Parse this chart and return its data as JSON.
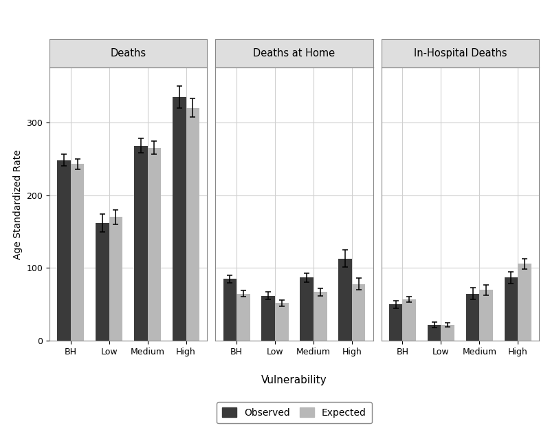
{
  "panels": [
    "Deaths",
    "Deaths at Home",
    "In-Hospital Deaths"
  ],
  "categories": [
    "BH",
    "Low",
    "Medium",
    "High"
  ],
  "observed": {
    "Deaths": [
      248,
      162,
      268,
      335
    ],
    "Deaths at Home": [
      85,
      62,
      87,
      113
    ],
    "In-Hospital Deaths": [
      50,
      22,
      65,
      87
    ]
  },
  "expected": {
    "Deaths": [
      243,
      170,
      265,
      320
    ],
    "Deaths at Home": [
      65,
      52,
      67,
      78
    ],
    "In-Hospital Deaths": [
      57,
      22,
      70,
      106
    ]
  },
  "obs_err": {
    "Deaths": [
      8,
      12,
      10,
      15
    ],
    "Deaths at Home": [
      5,
      5,
      6,
      12
    ],
    "In-Hospital Deaths": [
      5,
      4,
      8,
      8
    ]
  },
  "exp_err": {
    "Deaths": [
      7,
      10,
      9,
      13
    ],
    "Deaths at Home": [
      4,
      4,
      5,
      8
    ],
    "In-Hospital Deaths": [
      4,
      3,
      7,
      7
    ]
  },
  "ylim": [
    0,
    375
  ],
  "yticks": [
    0,
    100,
    200,
    300
  ],
  "bar_width": 0.35,
  "observed_color": "#3a3a3a",
  "expected_color": "#b8b8b8",
  "panel_header_color": "#dedede",
  "background_color": "#ffffff",
  "grid_color": "#d0d0d0",
  "ylabel": "Age Standardized Rate",
  "xlabel": "Vulnerability",
  "legend_observed": "Observed",
  "legend_expected": "Expected",
  "title_fontsize": 10.5,
  "axis_fontsize": 10,
  "tick_fontsize": 9,
  "legend_fontsize": 10,
  "spine_color": "#888888"
}
